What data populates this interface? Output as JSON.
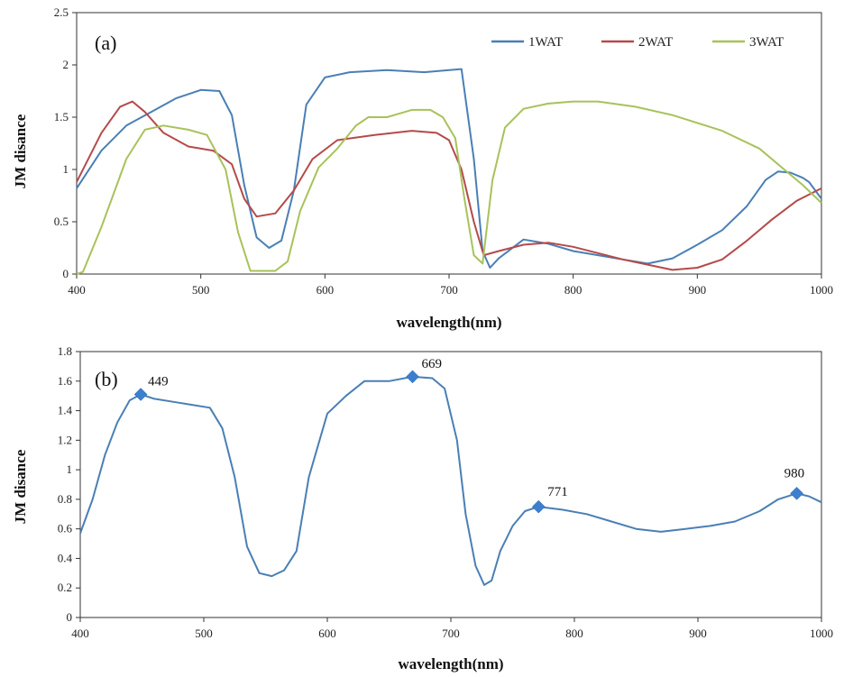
{
  "chart_data": [
    {
      "type": "line",
      "panel_label": "(a)",
      "xlabel": "wavelength(nm)",
      "ylabel": "JM disance",
      "xlim": [
        400,
        1000
      ],
      "ylim": [
        0,
        2.5
      ],
      "xticks": [
        400,
        500,
        600,
        700,
        800,
        900,
        1000
      ],
      "yticks": [
        0,
        0.5,
        1,
        1.5,
        2,
        2.5
      ],
      "grid": false,
      "legend_position": "top-right",
      "series": [
        {
          "name": "1WAT",
          "color": "#4a7fb5",
          "x": [
            400,
            420,
            440,
            460,
            480,
            500,
            515,
            525,
            535,
            545,
            555,
            565,
            575,
            585,
            600,
            620,
            650,
            680,
            700,
            710,
            720,
            727,
            733,
            740,
            760,
            780,
            800,
            820,
            840,
            860,
            880,
            900,
            920,
            940,
            955,
            965,
            975,
            985,
            990,
            1000
          ],
          "values": [
            0.82,
            1.18,
            1.42,
            1.55,
            1.68,
            1.76,
            1.75,
            1.52,
            0.85,
            0.35,
            0.25,
            0.32,
            0.8,
            1.62,
            1.88,
            1.93,
            1.95,
            1.93,
            1.95,
            1.96,
            1.1,
            0.22,
            0.06,
            0.15,
            0.33,
            0.29,
            0.22,
            0.18,
            0.14,
            0.1,
            0.15,
            0.28,
            0.42,
            0.65,
            0.9,
            0.98,
            0.97,
            0.92,
            0.88,
            0.72
          ]
        },
        {
          "name": "2WAT",
          "color": "#b54a4a",
          "x": [
            400,
            420,
            435,
            445,
            455,
            470,
            490,
            510,
            525,
            535,
            545,
            560,
            575,
            590,
            610,
            640,
            670,
            690,
            700,
            710,
            720,
            728,
            740,
            760,
            780,
            800,
            820,
            840,
            860,
            880,
            900,
            920,
            940,
            960,
            980,
            1000
          ],
          "values": [
            0.88,
            1.35,
            1.6,
            1.65,
            1.55,
            1.35,
            1.22,
            1.18,
            1.05,
            0.72,
            0.55,
            0.58,
            0.8,
            1.1,
            1.28,
            1.33,
            1.37,
            1.35,
            1.28,
            1.0,
            0.5,
            0.18,
            0.22,
            0.28,
            0.3,
            0.26,
            0.2,
            0.14,
            0.09,
            0.04,
            0.06,
            0.14,
            0.32,
            0.52,
            0.7,
            0.82
          ]
        },
        {
          "name": "3WAT",
          "color": "#a8c25a",
          "x": [
            400,
            405,
            420,
            440,
            455,
            470,
            490,
            505,
            520,
            530,
            540,
            550,
            560,
            570,
            580,
            595,
            610,
            625,
            635,
            650,
            670,
            685,
            695,
            705,
            712,
            720,
            727,
            735,
            745,
            760,
            780,
            800,
            820,
            850,
            880,
            920,
            950,
            970,
            985,
            1000
          ],
          "values": [
            0.0,
            0.02,
            0.45,
            1.1,
            1.38,
            1.42,
            1.38,
            1.33,
            1.0,
            0.4,
            0.03,
            0.03,
            0.03,
            0.12,
            0.6,
            1.02,
            1.2,
            1.42,
            1.5,
            1.5,
            1.57,
            1.57,
            1.5,
            1.3,
            0.75,
            0.18,
            0.1,
            0.9,
            1.4,
            1.58,
            1.63,
            1.65,
            1.65,
            1.6,
            1.52,
            1.37,
            1.2,
            1.0,
            0.85,
            0.68
          ]
        }
      ]
    },
    {
      "type": "line",
      "panel_label": "(b)",
      "xlabel": "wavelength(nm)",
      "ylabel": "JM disance",
      "xlim": [
        400,
        1000
      ],
      "ylim": [
        0,
        1.8
      ],
      "xticks": [
        400,
        500,
        600,
        700,
        800,
        900,
        1000
      ],
      "yticks": [
        0,
        0.2,
        0.4,
        0.6,
        0.8,
        1,
        1.2,
        1.4,
        1.6,
        1.8
      ],
      "grid": false,
      "series": [
        {
          "name": "JM distance",
          "color": "#4a7fb5",
          "x": [
            400,
            410,
            420,
            430,
            440,
            449,
            460,
            475,
            490,
            505,
            515,
            525,
            535,
            545,
            555,
            565,
            575,
            585,
            600,
            615,
            630,
            650,
            669,
            685,
            695,
            705,
            712,
            720,
            727,
            733,
            740,
            750,
            760,
            771,
            790,
            810,
            830,
            850,
            870,
            890,
            910,
            930,
            950,
            965,
            980,
            990,
            1000
          ],
          "values": [
            0.57,
            0.8,
            1.1,
            1.32,
            1.47,
            1.51,
            1.48,
            1.46,
            1.44,
            1.42,
            1.28,
            0.95,
            0.48,
            0.3,
            0.28,
            0.32,
            0.45,
            0.95,
            1.38,
            1.5,
            1.6,
            1.6,
            1.63,
            1.62,
            1.55,
            1.2,
            0.7,
            0.35,
            0.22,
            0.25,
            0.45,
            0.62,
            0.72,
            0.75,
            0.73,
            0.7,
            0.65,
            0.6,
            0.58,
            0.6,
            0.62,
            0.65,
            0.72,
            0.8,
            0.84,
            0.82,
            0.78
          ]
        }
      ],
      "markers": [
        {
          "x": 449,
          "y": 1.51,
          "label": "449"
        },
        {
          "x": 669,
          "y": 1.63,
          "label": "669"
        },
        {
          "x": 771,
          "y": 0.75,
          "label": "771"
        },
        {
          "x": 980,
          "y": 0.84,
          "label": "980"
        }
      ]
    }
  ]
}
